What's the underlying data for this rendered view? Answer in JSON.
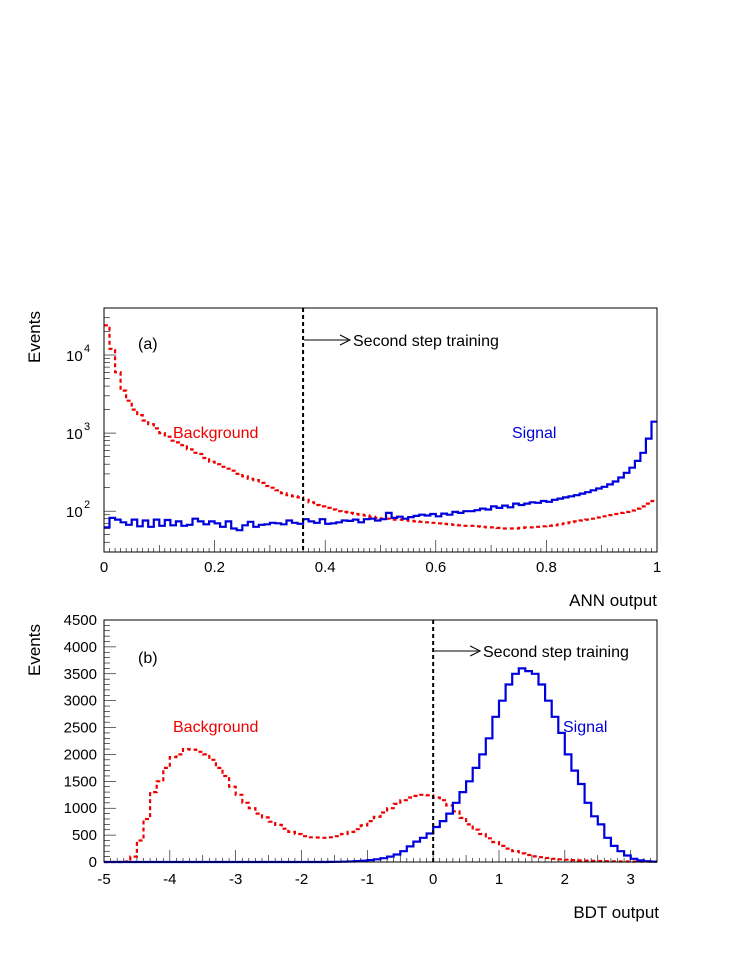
{
  "chart_data": [
    {
      "type": "histogram",
      "panel_label": "(a)",
      "xlabel": "ANN output",
      "ylabel": "Events",
      "xlim": [
        0,
        1
      ],
      "ylim": [
        30,
        40000
      ],
      "yscale": "log",
      "x_ticks": [
        "0",
        "0.2",
        "0.4",
        "0.6",
        "0.8",
        "1"
      ],
      "y_ticks": [
        {
          "base": "10",
          "exp": "2",
          "value": 100
        },
        {
          "base": "10",
          "exp": "3",
          "value": 1000
        },
        {
          "base": "10",
          "exp": "4",
          "value": 10000
        }
      ],
      "cut": {
        "x": 0.36,
        "label": "Second step training"
      },
      "colors": {
        "signal": "#0000dd",
        "background": "#ee0000"
      },
      "bin_width": 0.01,
      "series": [
        {
          "name": "Background",
          "style": "dashed",
          "values": [
            24000,
            12000,
            6000,
            3500,
            2600,
            2000,
            1700,
            1450,
            1300,
            1150,
            1000,
            900,
            800,
            760,
            700,
            620,
            560,
            540,
            480,
            430,
            400,
            370,
            350,
            330,
            300,
            280,
            260,
            250,
            230,
            210,
            200,
            185,
            170,
            160,
            155,
            150,
            140,
            130,
            120,
            115,
            110,
            105,
            100,
            98,
            95,
            92,
            90,
            88,
            85,
            82,
            80,
            80,
            78,
            78,
            77,
            75,
            74,
            73,
            72,
            71,
            70,
            69,
            68,
            67,
            66,
            65,
            65,
            64,
            63,
            62,
            62,
            61,
            60,
            60,
            60,
            61,
            62,
            62,
            63,
            64,
            65,
            66,
            68,
            70,
            72,
            74,
            76,
            78,
            80,
            83,
            86,
            89,
            92,
            95,
            98,
            102,
            108,
            115,
            125,
            135
          ]
        },
        {
          "name": "Signal",
          "style": "solid",
          "values": [
            62,
            82,
            78,
            72,
            67,
            78,
            64,
            76,
            63,
            78,
            65,
            77,
            66,
            74,
            65,
            67,
            80,
            74,
            68,
            74,
            70,
            63,
            74,
            60,
            57,
            66,
            73,
            63,
            67,
            68,
            71,
            70,
            68,
            76,
            71,
            69,
            79,
            74,
            71,
            79,
            69,
            70,
            72,
            76,
            75,
            78,
            72,
            79,
            80,
            76,
            79,
            95,
            82,
            85,
            80,
            84,
            87,
            90,
            88,
            92,
            86,
            93,
            90,
            98,
            95,
            100,
            100,
            103,
            108,
            105,
            115,
            110,
            118,
            112,
            125,
            120,
            125,
            130,
            128,
            135,
            132,
            140,
            145,
            150,
            155,
            160,
            168,
            175,
            185,
            195,
            205,
            220,
            240,
            270,
            310,
            360,
            440,
            560,
            850,
            1400
          ]
        }
      ],
      "annotations": [
        "Background",
        "Signal"
      ]
    },
    {
      "type": "histogram",
      "panel_label": "(b)",
      "xlabel": "BDT output",
      "ylabel": "Events",
      "xlim": [
        -5,
        3.4
      ],
      "ylim": [
        0,
        4500
      ],
      "x_ticks": [
        "-5",
        "-4",
        "-3",
        "-2",
        "-1",
        "0",
        "1",
        "2",
        "3"
      ],
      "y_ticks": [
        "0",
        "500",
        "1000",
        "1500",
        "2000",
        "2500",
        "3000",
        "3500",
        "4000",
        "4500"
      ],
      "cut": {
        "x": 0,
        "label": "Second step training"
      },
      "colors": {
        "signal": "#0000dd",
        "background": "#ee0000"
      },
      "bin_width": 0.1,
      "series": [
        {
          "name": "Background",
          "style": "dashed",
          "values": [
            0,
            0,
            0,
            10,
            100,
            400,
            800,
            1300,
            1500,
            1750,
            1950,
            2000,
            2100,
            2090,
            2050,
            2000,
            1900,
            1750,
            1600,
            1400,
            1250,
            1100,
            1000,
            900,
            830,
            750,
            690,
            620,
            560,
            520,
            480,
            460,
            455,
            450,
            460,
            480,
            520,
            560,
            610,
            680,
            760,
            840,
            920,
            1000,
            1080,
            1150,
            1200,
            1230,
            1250,
            1240,
            1200,
            1150,
            1050,
            940,
            820,
            700,
            600,
            520,
            440,
            370,
            300,
            250,
            200,
            160,
            130,
            105,
            90,
            75,
            60,
            50,
            42,
            36,
            30,
            26,
            22,
            18,
            15,
            12,
            10,
            9,
            8,
            7,
            6,
            5
          ]
        },
        {
          "name": "Signal",
          "style": "solid",
          "values": [
            0,
            0,
            0,
            0,
            0,
            0,
            0,
            0,
            0,
            0,
            0,
            0,
            0,
            0,
            0,
            0,
            0,
            0,
            0,
            0,
            0,
            0,
            0,
            0,
            0,
            0,
            0,
            0,
            0,
            0,
            0,
            0,
            0,
            0,
            2,
            4,
            6,
            10,
            16,
            25,
            35,
            50,
            70,
            100,
            140,
            200,
            290,
            380,
            450,
            530,
            650,
            760,
            900,
            1100,
            1300,
            1500,
            1750,
            2000,
            2300,
            2700,
            3000,
            3300,
            3500,
            3600,
            3550,
            3500,
            3300,
            3000,
            2700,
            2400,
            2000,
            1700,
            1450,
            1100,
            850,
            700,
            450,
            300,
            200,
            120,
            60,
            30,
            15,
            8
          ]
        }
      ],
      "annotations": [
        "Background",
        "Signal"
      ]
    }
  ]
}
